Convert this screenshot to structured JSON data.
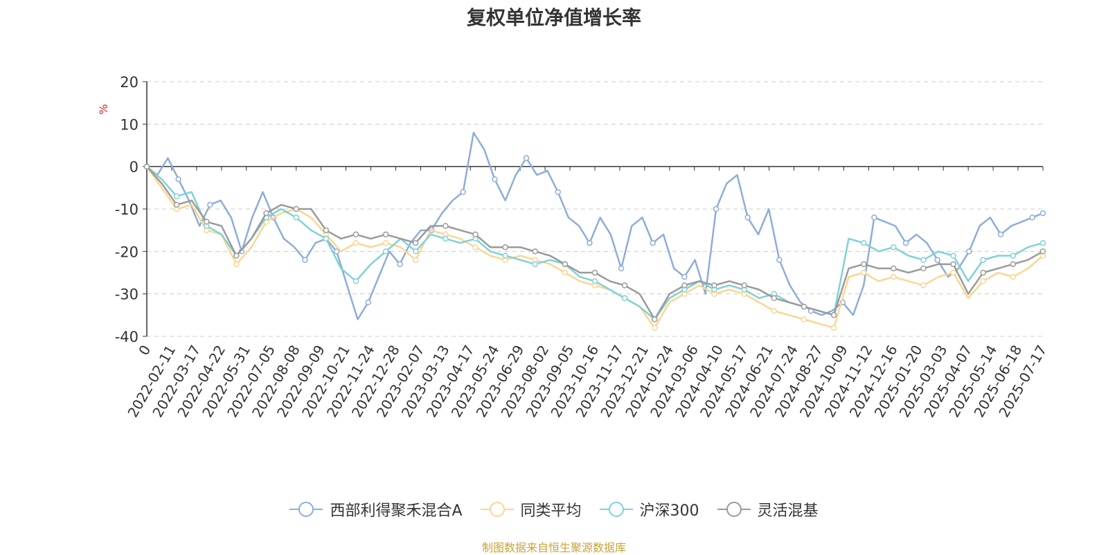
{
  "chart_data": {
    "type": "line",
    "title": "复权单位净值增长率",
    "ylabel": "%",
    "ylim": [
      -40,
      20
    ],
    "yticks": [
      20,
      10,
      0,
      -10,
      -20,
      -30,
      -40
    ],
    "x_labels": [
      "0",
      "2022-02-11",
      "2022-03-17",
      "2022-04-22",
      "2022-05-31",
      "2022-07-05",
      "2022-08-08",
      "2022-09-09",
      "2022-10-21",
      "2022-11-24",
      "2022-12-28",
      "2023-02-07",
      "2023-03-13",
      "2023-04-17",
      "2023-05-24",
      "2023-06-29",
      "2023-08-02",
      "2023-09-05",
      "2023-10-16",
      "2023-11-17",
      "2023-12-21",
      "2024-01-24",
      "2024-03-06",
      "2024-04-10",
      "2024-05-17",
      "2024-06-21",
      "2024-07-24",
      "2024-08-27",
      "2024-10-09",
      "2024-11-12",
      "2024-12-16",
      "2025-01-20",
      "2025-03-03",
      "2025-04-07",
      "2025-05-14",
      "2025-06-18",
      "2025-07-17"
    ],
    "grid": true,
    "legend_position": "bottom-center",
    "series": [
      {
        "name": "西部利得聚禾混合A",
        "color": "#8eacd9",
        "values": [
          0,
          -2,
          2,
          -3,
          -8,
          -14,
          -9,
          -8,
          -12,
          -20,
          -12,
          -6,
          -12,
          -17,
          -19,
          -22,
          -18,
          -17,
          -20,
          -28,
          -36,
          -32,
          -26,
          -20,
          -23,
          -18,
          -15,
          -15,
          -11,
          -8,
          -6,
          8,
          4,
          -3,
          -8,
          -2,
          2,
          -2,
          -1,
          -6,
          -12,
          -14,
          -18,
          -12,
          -16,
          -24,
          -14,
          -12,
          -18,
          -16,
          -24,
          -26,
          -22,
          -30,
          -10,
          -4,
          -2,
          -12,
          -16,
          -10,
          -22,
          -28,
          -32,
          -34,
          -35,
          -34,
          -32,
          -35,
          -28,
          -12,
          -13,
          -14,
          -18,
          -16,
          -18,
          -22,
          -26,
          -24,
          -20,
          -14,
          -12,
          -16,
          -14,
          -13,
          -12,
          -11
        ]
      },
      {
        "name": "同类平均",
        "color": "#fcd590",
        "values": [
          0,
          -5,
          -10,
          -9,
          -15,
          -16,
          -23,
          -19,
          -13,
          -11,
          -10,
          -12,
          -16,
          -20,
          -18,
          -19,
          -18,
          -19,
          -22,
          -15,
          -16,
          -17,
          -19,
          -21,
          -22,
          -21,
          -22,
          -23,
          -25,
          -27,
          -28,
          -29,
          -31,
          -33,
          -38,
          -32,
          -30,
          -28,
          -30,
          -29,
          -30,
          -32,
          -34,
          -35,
          -36,
          -37,
          -38,
          -26,
          -25,
          -27,
          -26,
          -27,
          -28,
          -26,
          -25,
          -31,
          -27,
          -25,
          -26,
          -24,
          -21
        ]
      },
      {
        "name": "沪深300",
        "color": "#7fd1d6",
        "values": [
          0,
          -3,
          -7,
          -6,
          -14,
          -16,
          -21,
          -17,
          -12,
          -10,
          -12,
          -15,
          -17,
          -24,
          -27,
          -23,
          -20,
          -17,
          -20,
          -16,
          -17,
          -18,
          -17,
          -20,
          -21,
          -22,
          -23,
          -22,
          -23,
          -26,
          -27,
          -29,
          -31,
          -33,
          -36,
          -31,
          -29,
          -27,
          -29,
          -28,
          -29,
          -31,
          -30,
          -32,
          -33,
          -34,
          -35,
          -17,
          -18,
          -20,
          -19,
          -21,
          -22,
          -20,
          -21,
          -27,
          -22,
          -21,
          -21,
          -19,
          -18
        ]
      },
      {
        "name": "灵活混基",
        "color": "#9a9a9a",
        "values": [
          0,
          -4,
          -9,
          -8,
          -13,
          -14,
          -21,
          -17,
          -11,
          -9,
          -10,
          -10,
          -15,
          -17,
          -16,
          -17,
          -16,
          -17,
          -18,
          -14,
          -14,
          -15,
          -16,
          -19,
          -19,
          -19,
          -20,
          -21,
          -23,
          -25,
          -25,
          -27,
          -28,
          -30,
          -36,
          -30,
          -28,
          -27,
          -28,
          -27,
          -28,
          -29,
          -31,
          -32,
          -33,
          -34,
          -35,
          -24,
          -23,
          -24,
          -24,
          -25,
          -24,
          -23,
          -23,
          -30,
          -25,
          -24,
          -23,
          -22,
          -20
        ]
      }
    ]
  },
  "legend": {
    "items": [
      {
        "label": "西部利得聚禾混合A",
        "color": "#8eacd9"
      },
      {
        "label": "同类平均",
        "color": "#fcd590"
      },
      {
        "label": "沪深300",
        "color": "#7fd1d6"
      },
      {
        "label": "灵活混基",
        "color": "#9a9a9a"
      }
    ]
  },
  "footer": {
    "source": "制图数据来自恒生聚源数据库"
  }
}
